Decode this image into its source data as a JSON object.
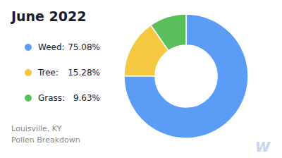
{
  "chart_data": {
    "type": "donut",
    "title": "June 2022",
    "subtitle": "Louisville, KY\nPollen Breakdown",
    "categories": [
      "Weed:",
      "Tree:",
      "Grass:"
    ],
    "values": [
      75.08,
      15.28,
      9.63
    ],
    "value_labels": [
      "75.08%",
      "15.28%",
      "9.63%"
    ],
    "colors": [
      "#5B9CF6",
      "#F5C842",
      "#5BBF5B"
    ],
    "legend": "left",
    "annotation": "w"
  }
}
